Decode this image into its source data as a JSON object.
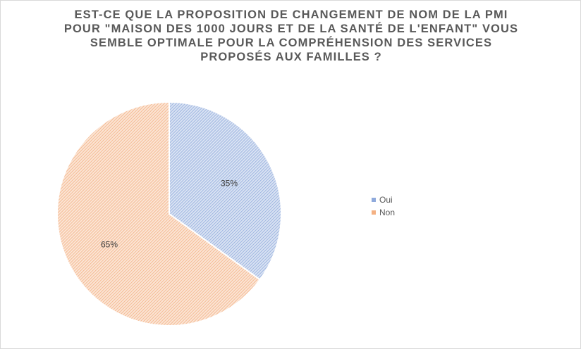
{
  "chart_data": {
    "type": "pie",
    "title_lines": [
      "EST-CE QUE LA PROPOSITION DE CHANGEMENT DE NOM DE LA PMI",
      "POUR \"MAISON DES 1000 JOURS ET DE LA SANTÉ DE L'ENFANT\" VOUS",
      "SEMBLE OPTIMALE POUR LA COMPRÉHENSION DES SERVICES",
      "PROPOSÉS AUX FAMILLES ?"
    ],
    "slices": [
      {
        "label": "Oui",
        "value": 35,
        "display": "35%",
        "color": "#8faadc"
      },
      {
        "label": "Non",
        "value": 65,
        "display": "65%",
        "color": "#f4b183"
      }
    ],
    "legend_position": "right"
  }
}
